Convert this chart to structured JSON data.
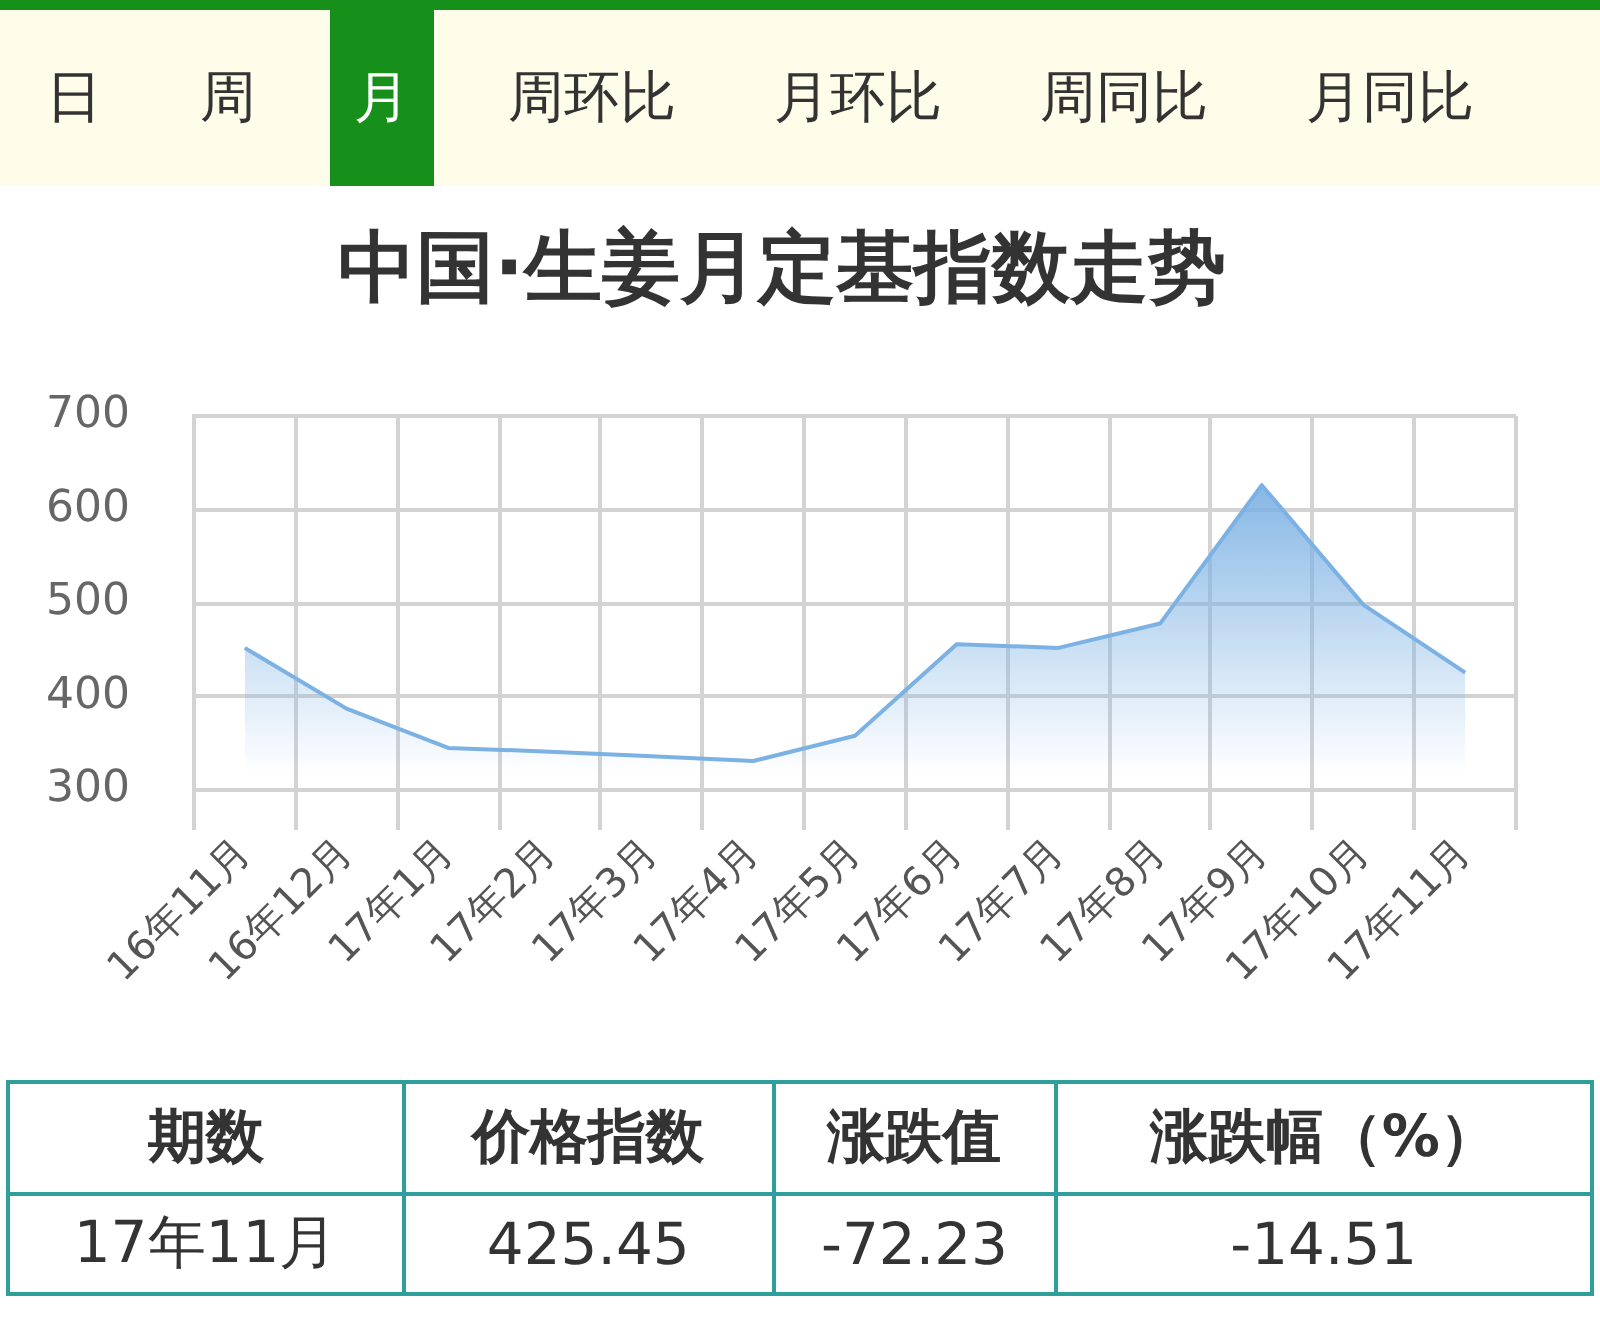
{
  "chart_data": {
    "type": "area",
    "title": "中国·生姜月定基指数走势",
    "categories": [
      "16年11月",
      "16年12月",
      "17年1月",
      "17年2月",
      "17年3月",
      "17年4月",
      "17年5月",
      "17年6月",
      "17年7月",
      "17年8月",
      "17年9月",
      "17年10月",
      "17年11月"
    ],
    "series": [
      {
        "color": "#7cb1e3",
        "values": [
          452,
          387,
          345,
          341,
          336,
          331,
          358,
          456,
          452,
          478,
          626,
          498,
          425.45
        ]
      }
    ],
    "ylim": [
      300,
      700
    ],
    "yticks": [
      300,
      400,
      500,
      600,
      700
    ],
    "grid": true,
    "legend": false,
    "marker": "none",
    "line_style": "solid",
    "annotations": [
      "日",
      "周",
      "月",
      "周环比",
      "月环比",
      "周同比",
      "月同比",
      "期数",
      "价格指数",
      "涨跌值",
      "涨跌幅（%）",
      "17年11月",
      "425.45",
      "-72.23",
      "-14.51"
    ]
  }
}
